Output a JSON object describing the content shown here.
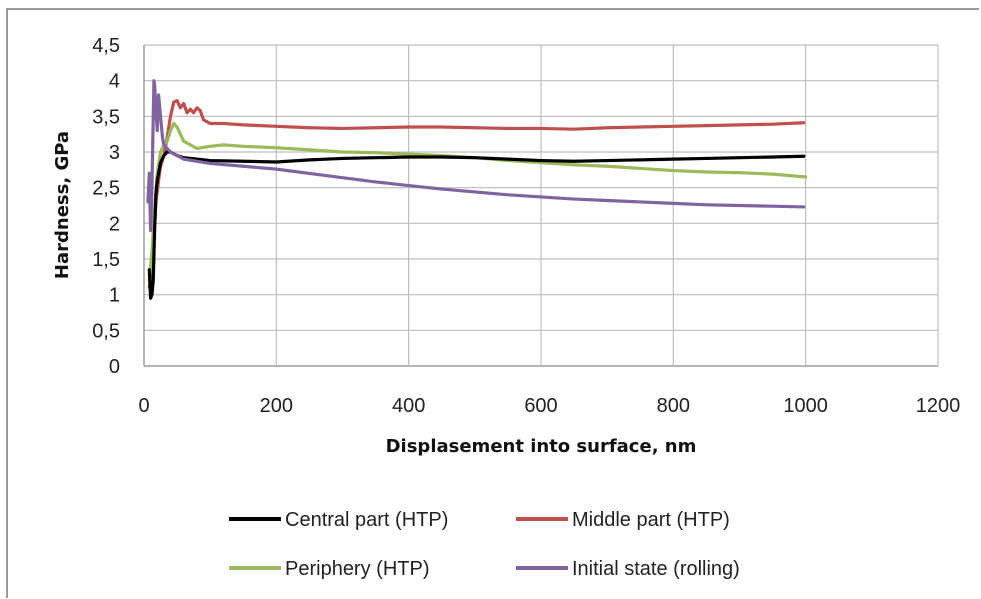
{
  "chart_data": {
    "type": "line",
    "xlabel": "Displasement into surface, nm",
    "ylabel": "Hardness, GPa",
    "xlim": [
      0,
      1200
    ],
    "ylim": [
      0,
      4.5
    ],
    "xticks": [
      "0",
      "200",
      "400",
      "600",
      "800",
      "1000",
      "1200"
    ],
    "yticks": [
      "0",
      "0,5",
      "1",
      "1,5",
      "2",
      "2,5",
      "3",
      "3,5",
      "4",
      "4,5"
    ],
    "grid": true,
    "legend_position": "bottom",
    "series": [
      {
        "name": "Central part (HTP)",
        "color": "#000000",
        "points": [
          [
            8,
            1.35
          ],
          [
            10,
            0.95
          ],
          [
            12,
            1.0
          ],
          [
            14,
            1.2
          ],
          [
            16,
            1.9
          ],
          [
            18,
            2.4
          ],
          [
            20,
            2.6
          ],
          [
            22,
            2.7
          ],
          [
            25,
            2.85
          ],
          [
            30,
            2.95
          ],
          [
            35,
            3.0
          ],
          [
            40,
            3.0
          ],
          [
            50,
            2.95
          ],
          [
            60,
            2.92
          ],
          [
            80,
            2.9
          ],
          [
            100,
            2.88
          ],
          [
            150,
            2.87
          ],
          [
            200,
            2.86
          ],
          [
            250,
            2.89
          ],
          [
            300,
            2.91
          ],
          [
            350,
            2.92
          ],
          [
            400,
            2.93
          ],
          [
            450,
            2.93
          ],
          [
            500,
            2.92
          ],
          [
            550,
            2.9
          ],
          [
            600,
            2.88
          ],
          [
            650,
            2.87
          ],
          [
            700,
            2.88
          ],
          [
            750,
            2.89
          ],
          [
            800,
            2.9
          ],
          [
            850,
            2.91
          ],
          [
            900,
            2.92
          ],
          [
            950,
            2.93
          ],
          [
            997,
            2.94
          ]
        ]
      },
      {
        "name": "Middle part (HTP)",
        "color": "#c0504d",
        "points": [
          [
            8,
            1.1
          ],
          [
            12,
            1.3
          ],
          [
            15,
            1.8
          ],
          [
            18,
            2.3
          ],
          [
            22,
            2.6
          ],
          [
            25,
            2.8
          ],
          [
            30,
            2.95
          ],
          [
            35,
            3.2
          ],
          [
            40,
            3.5
          ],
          [
            45,
            3.7
          ],
          [
            50,
            3.72
          ],
          [
            55,
            3.62
          ],
          [
            60,
            3.68
          ],
          [
            65,
            3.55
          ],
          [
            70,
            3.6
          ],
          [
            75,
            3.55
          ],
          [
            80,
            3.62
          ],
          [
            85,
            3.58
          ],
          [
            90,
            3.45
          ],
          [
            100,
            3.4
          ],
          [
            120,
            3.4
          ],
          [
            150,
            3.38
          ],
          [
            200,
            3.36
          ],
          [
            250,
            3.34
          ],
          [
            300,
            3.33
          ],
          [
            350,
            3.34
          ],
          [
            400,
            3.35
          ],
          [
            450,
            3.35
          ],
          [
            500,
            3.34
          ],
          [
            550,
            3.33
          ],
          [
            600,
            3.33
          ],
          [
            650,
            3.32
          ],
          [
            700,
            3.34
          ],
          [
            750,
            3.35
          ],
          [
            800,
            3.36
          ],
          [
            850,
            3.37
          ],
          [
            900,
            3.38
          ],
          [
            950,
            3.39
          ],
          [
            997,
            3.41
          ]
        ]
      },
      {
        "name": "Periphery (HTP)",
        "color": "#9bbb59",
        "points": [
          [
            8,
            1.2
          ],
          [
            12,
            1.6
          ],
          [
            16,
            2.2
          ],
          [
            20,
            2.7
          ],
          [
            25,
            3.0
          ],
          [
            30,
            3.1
          ],
          [
            35,
            3.15
          ],
          [
            40,
            3.3
          ],
          [
            45,
            3.4
          ],
          [
            50,
            3.35
          ],
          [
            55,
            3.25
          ],
          [
            60,
            3.15
          ],
          [
            70,
            3.1
          ],
          [
            80,
            3.05
          ],
          [
            100,
            3.08
          ],
          [
            120,
            3.1
          ],
          [
            150,
            3.08
          ],
          [
            200,
            3.06
          ],
          [
            250,
            3.03
          ],
          [
            300,
            3.0
          ],
          [
            350,
            2.99
          ],
          [
            400,
            2.97
          ],
          [
            450,
            2.95
          ],
          [
            500,
            2.92
          ],
          [
            550,
            2.88
          ],
          [
            600,
            2.85
          ],
          [
            650,
            2.82
          ],
          [
            700,
            2.8
          ],
          [
            750,
            2.77
          ],
          [
            800,
            2.74
          ],
          [
            850,
            2.72
          ],
          [
            900,
            2.71
          ],
          [
            950,
            2.69
          ],
          [
            1000,
            2.65
          ]
        ]
      },
      {
        "name": "Initial state (rolling)",
        "color": "#8064a2",
        "points": [
          [
            6,
            2.3
          ],
          [
            8,
            2.7
          ],
          [
            10,
            1.9
          ],
          [
            12,
            2.5
          ],
          [
            14,
            3.5
          ],
          [
            15,
            4.0
          ],
          [
            16,
            3.95
          ],
          [
            18,
            3.6
          ],
          [
            20,
            3.3
          ],
          [
            22,
            3.8
          ],
          [
            25,
            3.5
          ],
          [
            28,
            3.2
          ],
          [
            30,
            3.1
          ],
          [
            35,
            3.05
          ],
          [
            40,
            3.0
          ],
          [
            50,
            2.95
          ],
          [
            60,
            2.9
          ],
          [
            80,
            2.87
          ],
          [
            100,
            2.84
          ],
          [
            150,
            2.8
          ],
          [
            200,
            2.76
          ],
          [
            250,
            2.7
          ],
          [
            300,
            2.64
          ],
          [
            350,
            2.58
          ],
          [
            400,
            2.53
          ],
          [
            450,
            2.48
          ],
          [
            500,
            2.44
          ],
          [
            550,
            2.4
          ],
          [
            600,
            2.37
          ],
          [
            650,
            2.34
          ],
          [
            700,
            2.32
          ],
          [
            750,
            2.3
          ],
          [
            800,
            2.28
          ],
          [
            850,
            2.26
          ],
          [
            900,
            2.25
          ],
          [
            950,
            2.24
          ],
          [
            997,
            2.23
          ]
        ]
      }
    ]
  }
}
